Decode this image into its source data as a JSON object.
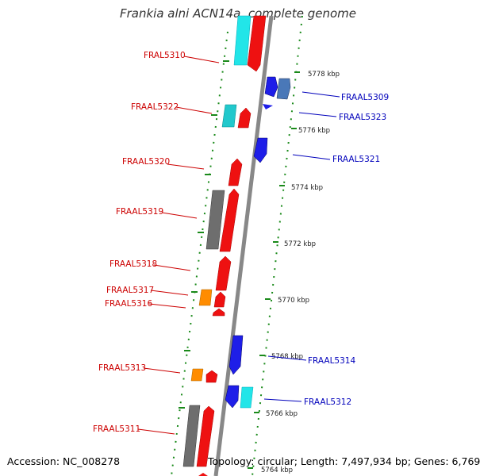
{
  "title": "Frankia alni ACN14a, complete genome",
  "footer": {
    "accession": "Accession: NC_008278",
    "summary": "Topology: circular; Length: 7,497,934 bp; Genes: 6,769"
  },
  "colors": {
    "reverse_label": "#cc0000",
    "forward_label": "#0000bb",
    "backbone": "#888888",
    "tick": "#1a8a1a"
  },
  "scale_labels": [
    "5778 kbp",
    "5776 kbp",
    "5774 kbp",
    "5772 kbp",
    "5770 kbp",
    "5768 kbp",
    "5766 kbp",
    "5764 kbp"
  ],
  "genes_reverse": [
    "FRAL5310",
    "FRAAL5322",
    "FRAAL5320",
    "FRAAL5319",
    "FRAAL5318",
    "FRAAL5317",
    "FRAAL5316",
    "FRAAL5313",
    "FRAAL5311"
  ],
  "genes_forward": [
    "FRAAL5309",
    "FRAAL5323",
    "FRAAL5321",
    "FRAAL5314",
    "FRAAL5312"
  ]
}
